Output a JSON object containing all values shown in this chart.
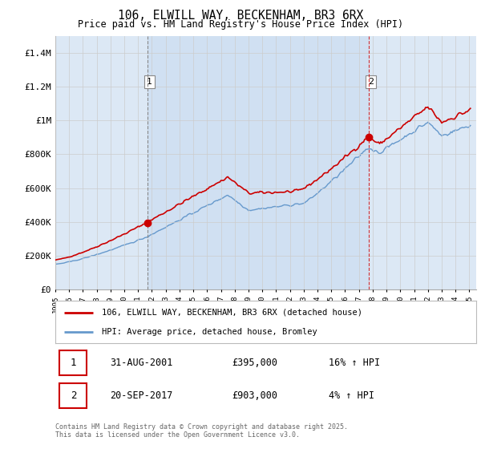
{
  "title": "106, ELWILL WAY, BECKENHAM, BR3 6RX",
  "subtitle": "Price paid vs. HM Land Registry's House Price Index (HPI)",
  "ylabel_ticks": [
    "£0",
    "£200K",
    "£400K",
    "£600K",
    "£800K",
    "£1M",
    "£1.2M",
    "£1.4M"
  ],
  "ytick_values": [
    0,
    200000,
    400000,
    600000,
    800000,
    1000000,
    1200000,
    1400000
  ],
  "ylim": [
    0,
    1500000
  ],
  "year_start": 1995,
  "year_end": 2025,
  "marker1_date": "31-AUG-2001",
  "marker1_price": 395000,
  "marker1_hpi_pct": "16% ↑ HPI",
  "marker1_x": 2001.67,
  "marker2_date": "20-SEP-2017",
  "marker2_price": 903000,
  "marker2_hpi_pct": "4% ↑ HPI",
  "marker2_x": 2017.72,
  "legend_line1": "106, ELWILL WAY, BECKENHAM, BR3 6RX (detached house)",
  "legend_line2": "HPI: Average price, detached house, Bromley",
  "footer": "Contains HM Land Registry data © Crown copyright and database right 2025.\nThis data is licensed under the Open Government Licence v3.0.",
  "red_color": "#cc0000",
  "blue_color": "#6699cc",
  "background_color": "#dce8f5",
  "span_color": "#c8dcf0",
  "grid_color": "#cccccc"
}
